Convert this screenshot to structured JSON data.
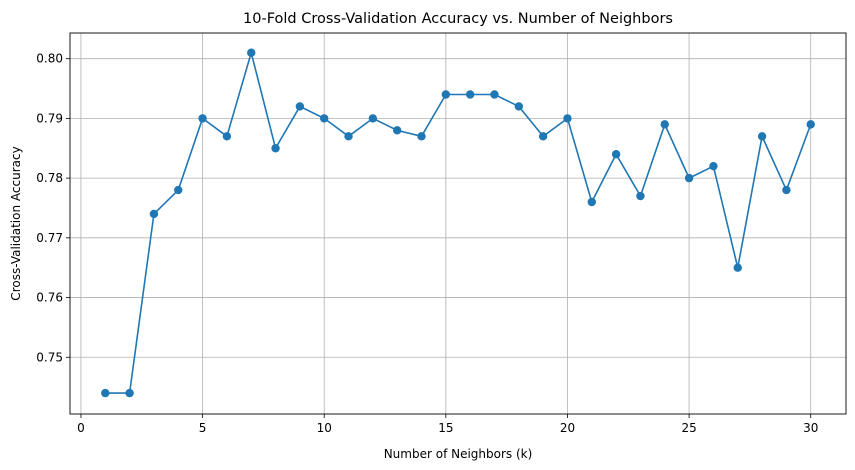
{
  "chart_data": {
    "type": "line",
    "title": "10-Fold Cross-Validation Accuracy vs. Number of Neighbors",
    "xlabel": "Number of Neighbors (k)",
    "ylabel": "Cross-Validation Accuracy",
    "xlim": [
      -0.45,
      31.45
    ],
    "ylim": [
      0.7405,
      0.8043
    ],
    "xticks": [
      0,
      5,
      10,
      15,
      20,
      25,
      30
    ],
    "yticks": [
      0.75,
      0.76,
      0.77,
      0.78,
      0.79,
      0.8
    ],
    "xtick_labels": [
      "0",
      "5",
      "10",
      "15",
      "20",
      "25",
      "30"
    ],
    "ytick_labels": [
      "0.75",
      "0.76",
      "0.77",
      "0.78",
      "0.79",
      "0.80"
    ],
    "grid": true,
    "legend": false,
    "x": [
      1,
      2,
      3,
      4,
      5,
      6,
      7,
      8,
      9,
      10,
      11,
      12,
      13,
      14,
      15,
      16,
      17,
      18,
      19,
      20,
      21,
      22,
      23,
      24,
      25,
      26,
      27,
      28,
      29,
      30
    ],
    "series": [
      {
        "name": "",
        "color": "#1f77b4",
        "marker": "circle",
        "values": [
          0.744,
          0.744,
          0.774,
          0.778,
          0.79,
          0.787,
          0.801,
          0.785,
          0.792,
          0.79,
          0.787,
          0.79,
          0.788,
          0.787,
          0.794,
          0.794,
          0.794,
          0.792,
          0.787,
          0.79,
          0.776,
          0.784,
          0.777,
          0.789,
          0.78,
          0.782,
          0.765,
          0.787,
          0.778,
          0.789
        ]
      }
    ]
  }
}
